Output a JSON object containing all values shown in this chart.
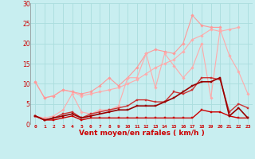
{
  "xlabel": "Vent moyen/en rafales ( km/h )",
  "xlim": [
    -0.5,
    23.5
  ],
  "ylim": [
    0,
    30
  ],
  "yticks": [
    0,
    5,
    10,
    15,
    20,
    25,
    30
  ],
  "xticks": [
    0,
    1,
    2,
    3,
    4,
    5,
    6,
    7,
    8,
    9,
    10,
    11,
    12,
    13,
    14,
    15,
    16,
    17,
    18,
    19,
    20,
    21,
    22,
    23
  ],
  "bg_color": "#c8eef0",
  "grid_color": "#aadddd",
  "series": [
    {
      "y": [
        10.5,
        6.5,
        7.0,
        8.5,
        8.0,
        7.0,
        7.5,
        8.0,
        8.5,
        9.0,
        10.0,
        11.0,
        12.5,
        14.0,
        15.0,
        16.0,
        18.0,
        21.0,
        22.0,
        23.5,
        23.0,
        23.5,
        24.0,
        null
      ],
      "color": "#ffaaaa",
      "lw": 0.8,
      "marker": "D",
      "ms": 1.8
    },
    {
      "y": [
        10.5,
        6.5,
        7.0,
        8.5,
        8.0,
        7.5,
        8.0,
        9.5,
        11.5,
        9.5,
        11.5,
        14.0,
        17.5,
        18.5,
        18.0,
        17.5,
        20.0,
        27.0,
        24.5,
        24.0,
        24.0,
        null,
        null,
        null
      ],
      "color": "#ff9999",
      "lw": 0.8,
      "marker": "D",
      "ms": 1.8
    },
    {
      "y": [
        2.0,
        1.5,
        2.0,
        3.5,
        7.5,
        3.0,
        2.5,
        3.5,
        3.5,
        4.5,
        11.5,
        11.5,
        17.5,
        9.0,
        17.5,
        14.5,
        11.5,
        14.0,
        20.0,
        6.5,
        23.5,
        17.0,
        13.0,
        7.5
      ],
      "color": "#ffaaaa",
      "lw": 0.8,
      "marker": "D",
      "ms": 1.8
    },
    {
      "y": [
        2.0,
        1.0,
        1.5,
        2.5,
        3.0,
        1.5,
        2.5,
        3.0,
        3.5,
        4.0,
        4.5,
        6.0,
        6.0,
        5.5,
        5.5,
        8.0,
        7.5,
        8.5,
        11.5,
        11.5,
        11.0,
        3.0,
        5.0,
        4.0
      ],
      "color": "#cc3333",
      "lw": 1.0,
      "marker": "s",
      "ms": 1.8
    },
    {
      "y": [
        2.0,
        1.0,
        1.0,
        1.5,
        2.0,
        1.0,
        1.5,
        1.5,
        1.5,
        1.5,
        1.5,
        1.5,
        1.5,
        1.5,
        1.5,
        1.5,
        1.5,
        1.5,
        3.5,
        3.0,
        3.0,
        2.0,
        1.5,
        1.5
      ],
      "color": "#cc0000",
      "lw": 1.0,
      "marker": "s",
      "ms": 1.8
    },
    {
      "y": [
        2.0,
        1.0,
        1.5,
        2.0,
        2.5,
        1.5,
        2.0,
        2.5,
        3.0,
        3.5,
        3.5,
        4.5,
        4.5,
        4.5,
        5.5,
        6.5,
        8.0,
        9.5,
        10.5,
        10.5,
        11.5,
        2.0,
        4.0,
        1.5
      ],
      "color": "#990000",
      "lw": 1.2,
      "marker": "s",
      "ms": 2.0
    }
  ]
}
